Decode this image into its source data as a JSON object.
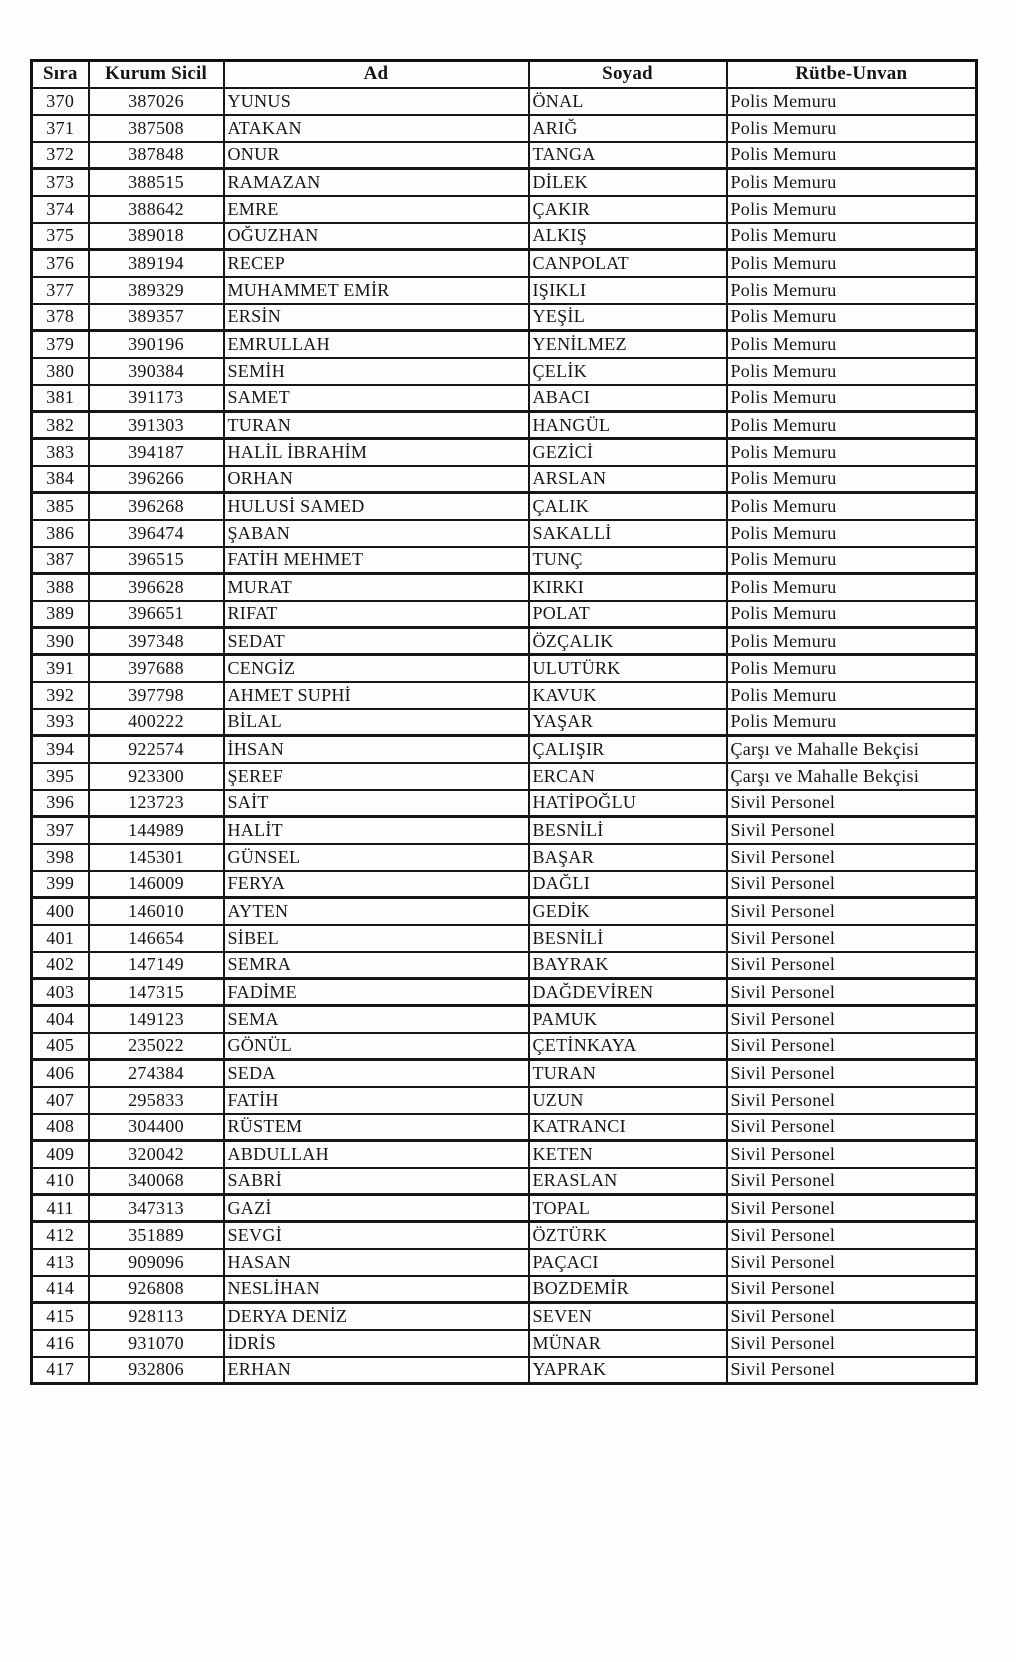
{
  "table": {
    "headers": [
      "Sıra",
      "Kurum Sicil",
      "Ad",
      "Soyad",
      "Rütbe-Unvan"
    ],
    "rows": [
      [
        "370",
        "387026",
        "YUNUS",
        "ÖNAL",
        "Polis Memuru"
      ],
      [
        "371",
        "387508",
        "ATAKAN",
        "ARIĞ",
        "Polis Memuru"
      ],
      [
        "372",
        "387848",
        "ONUR",
        "TANGA",
        "Polis Memuru"
      ],
      [
        "373",
        "388515",
        "RAMAZAN",
        "DİLEK",
        "Polis Memuru"
      ],
      [
        "374",
        "388642",
        "EMRE",
        "ÇAKIR",
        "Polis Memuru"
      ],
      [
        "375",
        "389018",
        "OĞUZHAN",
        "ALKIŞ",
        "Polis Memuru"
      ],
      [
        "376",
        "389194",
        "RECEP",
        "CANPOLAT",
        "Polis Memuru"
      ],
      [
        "377",
        "389329",
        "MUHAMMET EMİR",
        "IŞIKLI",
        "Polis Memuru"
      ],
      [
        "378",
        "389357",
        "ERSİN",
        "YEŞİL",
        "Polis Memuru"
      ],
      [
        "379",
        "390196",
        "EMRULLAH",
        "YENİLMEZ",
        "Polis Memuru"
      ],
      [
        "380",
        "390384",
        "SEMİH",
        "ÇELİK",
        "Polis Memuru"
      ],
      [
        "381",
        "391173",
        "SAMET",
        "ABACI",
        "Polis Memuru"
      ],
      [
        "382",
        "391303",
        "TURAN",
        "HANGÜL",
        "Polis Memuru"
      ],
      [
        "383",
        "394187",
        "HALİL İBRAHİM",
        "GEZİCİ",
        "Polis Memuru"
      ],
      [
        "384",
        "396266",
        "ORHAN",
        "ARSLAN",
        "Polis Memuru"
      ],
      [
        "385",
        "396268",
        "HULUSİ SAMED",
        "ÇALIK",
        "Polis Memuru"
      ],
      [
        "386",
        "396474",
        "ŞABAN",
        "SAKALLİ",
        "Polis Memuru"
      ],
      [
        "387",
        "396515",
        "FATİH MEHMET",
        "TUNÇ",
        "Polis Memuru"
      ],
      [
        "388",
        "396628",
        "MURAT",
        "KIRKI",
        "Polis Memuru"
      ],
      [
        "389",
        "396651",
        "RIFAT",
        "POLAT",
        "Polis Memuru"
      ],
      [
        "390",
        "397348",
        "SEDAT",
        "ÖZÇALIK",
        "Polis Memuru"
      ],
      [
        "391",
        "397688",
        "CENGİZ",
        "ULUTÜRK",
        "Polis Memuru"
      ],
      [
        "392",
        "397798",
        "AHMET SUPHİ",
        "KAVUK",
        "Polis Memuru"
      ],
      [
        "393",
        "400222",
        "BİLAL",
        "YAŞAR",
        "Polis Memuru"
      ],
      [
        "394",
        "922574",
        "İHSAN",
        "ÇALIŞIR",
        "Çarşı ve Mahalle Bekçisi"
      ],
      [
        "395",
        "923300",
        "ŞEREF",
        "ERCAN",
        "Çarşı ve Mahalle Bekçisi"
      ],
      [
        "396",
        "123723",
        "SAİT",
        "HATİPOĞLU",
        "Sivil Personel"
      ],
      [
        "397",
        "144989",
        "HALİT",
        "BESNİLİ",
        "Sivil Personel"
      ],
      [
        "398",
        "145301",
        "GÜNSEL",
        "BAŞAR",
        "Sivil Personel"
      ],
      [
        "399",
        "146009",
        "FERYA",
        "DAĞLI",
        "Sivil Personel"
      ],
      [
        "400",
        "146010",
        "AYTEN",
        "GEDİK",
        "Sivil Personel"
      ],
      [
        "401",
        "146654",
        "SİBEL",
        "BESNİLİ",
        "Sivil Personel"
      ],
      [
        "402",
        "147149",
        "SEMRA",
        "BAYRAK",
        "Sivil Personel"
      ],
      [
        "403",
        "147315",
        "FADİME",
        "DAĞDEVİREN",
        "Sivil Personel"
      ],
      [
        "404",
        "149123",
        "SEMA",
        "PAMUK",
        "Sivil Personel"
      ],
      [
        "405",
        "235022",
        "GÖNÜL",
        "ÇETİNKAYA",
        "Sivil Personel"
      ],
      [
        "406",
        "274384",
        "SEDA",
        "TURAN",
        "Sivil Personel"
      ],
      [
        "407",
        "295833",
        "FATİH",
        "UZUN",
        "Sivil Personel"
      ],
      [
        "408",
        "304400",
        "RÜSTEM",
        "KATRANCI",
        "Sivil Personel"
      ],
      [
        "409",
        "320042",
        "ABDULLAH",
        "KETEN",
        "Sivil Personel"
      ],
      [
        "410",
        "340068",
        "SABRİ",
        "ERASLAN",
        "Sivil Personel"
      ],
      [
        "411",
        "347313",
        "GAZİ",
        "TOPAL",
        "Sivil Personel"
      ],
      [
        "412",
        "351889",
        "SEVGİ",
        "ÖZTÜRK",
        "Sivil Personel"
      ],
      [
        "413",
        "909096",
        "HASAN",
        "PAÇACI",
        "Sivil Personel"
      ],
      [
        "414",
        "926808",
        "NESLİHAN",
        "BOZDEMİR",
        "Sivil Personel"
      ],
      [
        "415",
        "928113",
        "DERYA DENİZ",
        "SEVEN",
        "Sivil Personel"
      ],
      [
        "416",
        "931070",
        "İDRİS",
        "MÜNAR",
        "Sivil Personel"
      ],
      [
        "417",
        "932806",
        "ERHAN",
        "YAPRAK",
        "Sivil Personel"
      ]
    ],
    "column_names": [
      "sira",
      "kurum-sicil",
      "ad",
      "soyad",
      "rutbe-unvan"
    ],
    "text_color": "#141414",
    "line_color": "#161616"
  }
}
